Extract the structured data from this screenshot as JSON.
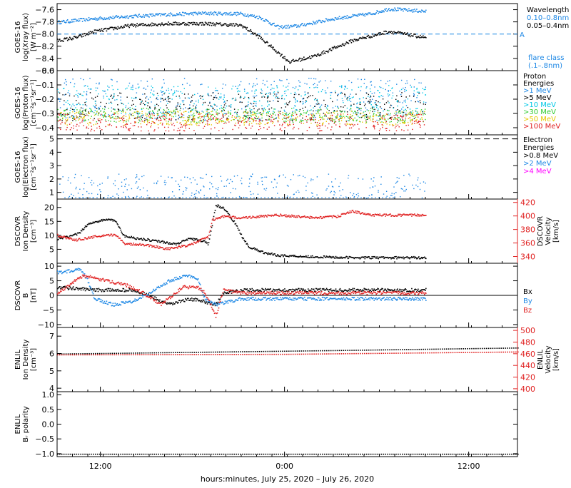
{
  "xlabel": "hours:minutes, July 25, 2020 – July 26, 2020",
  "colors": {
    "black": "#000000",
    "blue": "#1e88e5",
    "cyan": "#00c8e6",
    "green": "#33cc33",
    "yellow": "#e6c800",
    "orange": "#ff8000",
    "red": "#e02020",
    "magenta": "#ff00ff"
  },
  "chart_data": [
    {
      "id": "xray",
      "type": "line",
      "ylim": [
        -8.6,
        -7.5
      ],
      "ylabel": [
        "GOES-16",
        "log(Xray flux)",
        "[W m⁻²]"
      ],
      "yticks": [
        -8.6,
        -8.4,
        -8.2,
        -8.0,
        -7.8,
        -7.6
      ],
      "ytick_labels": [
        "−8.6",
        "−8.4",
        "−8.2",
        "−8.0",
        "−7.8",
        "−7.6"
      ],
      "right_legend_title": "Wavelength",
      "series": [
        {
          "name": "0.10–0.8nm",
          "color": "blue",
          "points": [
            [
              0,
              -7.8
            ],
            [
              0.1,
              -7.74
            ],
            [
              0.2,
              -7.7
            ],
            [
              0.3,
              -7.67
            ],
            [
              0.4,
              -7.65
            ],
            [
              0.5,
              -7.66
            ],
            [
              0.55,
              -7.72
            ],
            [
              0.6,
              -7.88
            ],
            [
              0.65,
              -7.86
            ],
            [
              0.75,
              -7.74
            ],
            [
              0.85,
              -7.66
            ],
            [
              0.9,
              -7.58
            ],
            [
              1,
              -7.62
            ]
          ]
        },
        {
          "name": "0.05–0.4nm",
          "color": "black",
          "points": [
            [
              0,
              -8.1
            ],
            [
              0.05,
              -8.05
            ],
            [
              0.1,
              -7.95
            ],
            [
              0.2,
              -7.85
            ],
            [
              0.3,
              -7.82
            ],
            [
              0.4,
              -7.82
            ],
            [
              0.5,
              -7.85
            ],
            [
              0.55,
              -8.05
            ],
            [
              0.6,
              -8.3
            ],
            [
              0.63,
              -8.45
            ],
            [
              0.7,
              -8.35
            ],
            [
              0.8,
              -8.1
            ],
            [
              0.9,
              -7.95
            ],
            [
              1,
              -8.05
            ]
          ]
        }
      ],
      "reference_line": {
        "value": -8.0,
        "label": "A",
        "note": "flare class",
        "note2": "(.1–.8nm)"
      }
    },
    {
      "id": "proton",
      "type": "scatter",
      "ylim": [
        -0.45,
        0.0
      ],
      "ylabel": [
        "GOES-16",
        "log(Proton flux)",
        "[cm⁻²s⁻¹sr⁻¹]"
      ],
      "yticks": [
        -0.4,
        -0.3,
        -0.2,
        -0.1,
        0.0
      ],
      "ytick_labels": [
        "−0.4",
        "−0.3",
        "−0.2",
        "−0.1",
        "0.0"
      ],
      "right_legend_title": "Proton Energies",
      "series": [
        {
          "name": ">1 MeV",
          "color": "blue",
          "band": [
            -0.35,
            -0.05
          ]
        },
        {
          "name": ">5 MeV",
          "color": "black",
          "band": [
            -0.35,
            -0.15
          ]
        },
        {
          "name": ">10 MeV",
          "color": "cyan",
          "band": [
            -0.32,
            -0.1
          ]
        },
        {
          "name": ">30 MeV",
          "color": "green",
          "band": [
            -0.36,
            -0.26
          ]
        },
        {
          "name": ">50 MeV",
          "color": "yellow",
          "band": [
            -0.38,
            -0.28
          ]
        },
        {
          "name": ">100 MeV",
          "color": "red",
          "band": [
            -0.42,
            -0.3
          ]
        }
      ]
    },
    {
      "id": "electron",
      "type": "scatter",
      "ylim": [
        0.5,
        5.3
      ],
      "ylabel": [
        "GOES-16",
        "log(Electron flux)",
        "[cm⁻²s⁻¹sr⁻¹]"
      ],
      "yticks": [
        1,
        2,
        3,
        4,
        5
      ],
      "ytick_labels": [
        "1",
        "2",
        "3",
        "4",
        "5"
      ],
      "right_legend_title": "Electron Energies",
      "dashed_level": 5.0,
      "series": [
        {
          "name": ">0.8 MeV",
          "color": "black",
          "band": [
            0,
            0
          ]
        },
        {
          "name": ">2 MeV",
          "color": "blue",
          "band": [
            0.6,
            2.4
          ]
        },
        {
          "name": ">4 MeV",
          "color": "magenta",
          "band": [
            0,
            0
          ]
        }
      ]
    },
    {
      "id": "dscovr_n",
      "type": "line",
      "ylim": [
        0,
        23
      ],
      "y2lim": [
        330,
        425
      ],
      "ylabel": [
        "DSCOVR",
        "Ion Density",
        "[cm⁻³]"
      ],
      "y2label": [
        "DSCOVR",
        "Velocity",
        "[km/s]"
      ],
      "yticks": [
        5,
        10,
        15,
        20
      ],
      "ytick_labels": [
        "5",
        "10",
        "15",
        "20"
      ],
      "y2ticks": [
        340,
        360,
        380,
        400,
        420
      ],
      "y2tick_labels": [
        "340",
        "360",
        "380",
        "400",
        "420"
      ],
      "series": [
        {
          "name": "Density",
          "color": "black",
          "axis": "left",
          "points": [
            [
              0,
              9
            ],
            [
              0.04,
              10
            ],
            [
              0.06,
              11
            ],
            [
              0.08,
              14
            ],
            [
              0.1,
              15
            ],
            [
              0.14,
              16
            ],
            [
              0.16,
              15
            ],
            [
              0.18,
              10
            ],
            [
              0.22,
              9
            ],
            [
              0.28,
              8
            ],
            [
              0.32,
              7
            ],
            [
              0.36,
              9
            ],
            [
              0.4,
              8
            ],
            [
              0.41,
              7
            ],
            [
              0.43,
              21
            ],
            [
              0.45,
              20
            ],
            [
              0.48,
              15
            ],
            [
              0.5,
              10
            ],
            [
              0.52,
              6
            ],
            [
              0.56,
              4
            ],
            [
              0.6,
              3
            ],
            [
              0.7,
              2.5
            ],
            [
              0.8,
              2.2
            ],
            [
              0.86,
              2.2
            ]
          ]
        },
        {
          "name": "Velocity",
          "color": "red",
          "axis": "right",
          "points": [
            [
              0,
              372
            ],
            [
              0.05,
              365
            ],
            [
              0.1,
              370
            ],
            [
              0.16,
              373
            ],
            [
              0.18,
              360
            ],
            [
              0.24,
              358
            ],
            [
              0.3,
              352
            ],
            [
              0.36,
              358
            ],
            [
              0.41,
              370
            ],
            [
              0.42,
              395
            ],
            [
              0.45,
              400
            ],
            [
              0.5,
              398
            ],
            [
              0.6,
              402
            ],
            [
              0.7,
              398
            ],
            [
              0.76,
              400
            ],
            [
              0.8,
              408
            ],
            [
              0.83,
              404
            ],
            [
              0.86,
              402
            ]
          ]
        }
      ]
    },
    {
      "id": "dscovr_b",
      "type": "line",
      "ylim": [
        -11,
        11
      ],
      "ylabel": [
        "DSCOVR",
        "B",
        "[nT]"
      ],
      "yticks": [
        -10,
        -5,
        0,
        5,
        10
      ],
      "ytick_labels": [
        "−10",
        "−5",
        "0",
        "5",
        "10"
      ],
      "zero_line": true,
      "series": [
        {
          "name": "Bx",
          "color": "black",
          "points": [
            [
              0,
              3
            ],
            [
              0.1,
              2
            ],
            [
              0.2,
              2
            ],
            [
              0.25,
              0
            ],
            [
              0.3,
              -3
            ],
            [
              0.33,
              -2
            ],
            [
              0.36,
              -1
            ],
            [
              0.4,
              -2
            ],
            [
              0.43,
              -3
            ],
            [
              0.45,
              1
            ],
            [
              0.5,
              2
            ],
            [
              0.6,
              2
            ],
            [
              0.7,
              2
            ],
            [
              0.8,
              2
            ],
            [
              0.86,
              2
            ]
          ]
        },
        {
          "name": "By",
          "color": "blue",
          "points": [
            [
              0,
              8
            ],
            [
              0.06,
              9
            ],
            [
              0.08,
              6
            ],
            [
              0.1,
              -1
            ],
            [
              0.15,
              -3
            ],
            [
              0.2,
              -2
            ],
            [
              0.25,
              1
            ],
            [
              0.3,
              5
            ],
            [
              0.35,
              7
            ],
            [
              0.38,
              6
            ],
            [
              0.4,
              -1
            ],
            [
              0.43,
              -3
            ],
            [
              0.5,
              -1
            ],
            [
              0.6,
              -1
            ],
            [
              0.7,
              -1
            ],
            [
              0.8,
              -1
            ],
            [
              0.86,
              -1
            ]
          ]
        },
        {
          "name": "Bz",
          "color": "red",
          "points": [
            [
              0,
              1
            ],
            [
              0.07,
              7
            ],
            [
              0.1,
              6
            ],
            [
              0.18,
              4
            ],
            [
              0.22,
              2
            ],
            [
              0.28,
              -3
            ],
            [
              0.3,
              -1
            ],
            [
              0.34,
              3
            ],
            [
              0.38,
              3
            ],
            [
              0.4,
              1
            ],
            [
              0.42,
              -4
            ],
            [
              0.43,
              -7
            ],
            [
              0.45,
              2
            ],
            [
              0.5,
              1
            ],
            [
              0.6,
              1
            ],
            [
              0.7,
              1
            ],
            [
              0.8,
              1
            ],
            [
              0.86,
              1
            ]
          ]
        }
      ]
    },
    {
      "id": "enlil_n",
      "type": "line",
      "ylim": [
        3.8,
        7.5
      ],
      "y2lim": [
        395,
        505
      ],
      "ylabel": [
        "ENLIL",
        "Ion Density",
        "[cm⁻³]"
      ],
      "y2label": [
        "ENLIL",
        "Velocity",
        "[km/s]"
      ],
      "yticks": [
        4,
        5,
        6,
        7
      ],
      "ytick_labels": [
        "4",
        "5",
        "6",
        "7"
      ],
      "y2ticks": [
        400,
        420,
        440,
        460,
        480,
        500
      ],
      "y2tick_labels": [
        "400",
        "420",
        "440",
        "460",
        "480",
        "500"
      ],
      "series": [
        {
          "name": "Density",
          "color": "black",
          "axis": "left",
          "points": [
            [
              0,
              6.0
            ],
            [
              0.3,
              6.1
            ],
            [
              0.6,
              6.2
            ],
            [
              1,
              6.35
            ]
          ]
        },
        {
          "name": "Velocity",
          "color": "red",
          "axis": "right",
          "points": [
            [
              0,
              459
            ],
            [
              0.5,
              460
            ],
            [
              1,
              464
            ]
          ]
        }
      ]
    },
    {
      "id": "enlil_br",
      "type": "line",
      "ylim": [
        -1.1,
        1.1
      ],
      "ylabel": [
        "ENLIL",
        "Bᵣ polarity"
      ],
      "yticks": [
        -1.0,
        -0.5,
        0.0,
        0.5,
        1.0
      ],
      "ytick_labels": [
        "−1.0",
        "−0.5",
        "0.0",
        "0.5",
        "1.0"
      ],
      "series": [
        {
          "name": "Polarity",
          "color": "black",
          "points": [
            [
              0,
              -1.0
            ],
            [
              1,
              -1.0
            ]
          ]
        }
      ]
    }
  ],
  "xaxis": {
    "ticks": [
      "12:00",
      "0:00",
      "12:00"
    ]
  },
  "legend": {
    "xray": [
      {
        "text": "Wavelength",
        "color": "black"
      },
      {
        "text": "0.10–0.8nm",
        "color": "blue"
      },
      {
        "text": "0.05–0.4nm",
        "color": "black"
      }
    ],
    "proton": [
      {
        "text": "Proton",
        "color": "black"
      },
      {
        "text": "Energies",
        "color": "black"
      },
      {
        "text": ">1 MeV",
        "color": "blue"
      },
      {
        "text": ">5 MeV",
        "color": "black"
      },
      {
        "text": ">10 MeV",
        "color": "cyan"
      },
      {
        "text": ">30 MeV",
        "color": "green"
      },
      {
        "text": ">50 MeV",
        "color": "yellow"
      },
      {
        "text": ">100 MeV",
        "color": "red"
      }
    ],
    "electron": [
      {
        "text": "Electron",
        "color": "black"
      },
      {
        "text": "Energies",
        "color": "black"
      },
      {
        "text": ">0.8 MeV",
        "color": "black"
      },
      {
        "text": ">2 MeV",
        "color": "blue"
      },
      {
        "text": ">4 MeV",
        "color": "magenta"
      }
    ],
    "bfield": [
      {
        "text": "Bx",
        "color": "black"
      },
      {
        "text": "By",
        "color": "blue"
      },
      {
        "text": "Bz",
        "color": "red"
      }
    ],
    "flare": [
      {
        "text": "A",
        "color": "blue"
      },
      {
        "text": "flare class",
        "color": "blue"
      },
      {
        "text": "(.1–.8nm)",
        "color": "blue"
      }
    ]
  }
}
